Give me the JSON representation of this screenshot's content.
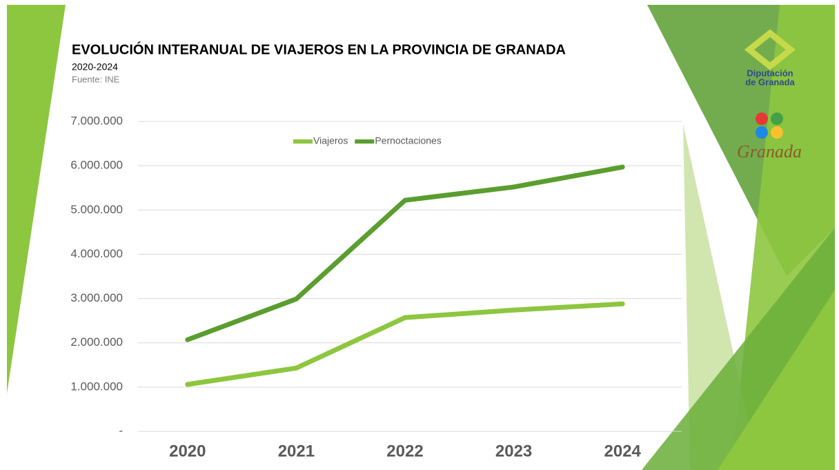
{
  "chart_data": {
    "type": "line",
    "title": "EVOLUCIÓN INTERANUAL  DE VIAJEROS EN LA PROVINCIA DE GRANADA",
    "subtitle": "2020-2024",
    "source": "Fuente: INE",
    "categories": [
      "2020",
      "2021",
      "2022",
      "2023",
      "2024"
    ],
    "series": [
      {
        "name": "Viajeros",
        "color": "#8dc63f",
        "values": [
          1060000,
          1430000,
          2570000,
          2740000,
          2880000
        ]
      },
      {
        "name": "Pernoctaciones",
        "color": "#5a9e2f",
        "values": [
          2070000,
          2990000,
          5220000,
          5520000,
          5970000
        ]
      }
    ],
    "ylim": [
      0,
      7000000
    ],
    "yticks": [
      {
        "value": 0,
        "label": "-"
      },
      {
        "value": 1000000,
        "label": "1.000.000"
      },
      {
        "value": 2000000,
        "label": "2.000.000"
      },
      {
        "value": 3000000,
        "label": "3.000.000"
      },
      {
        "value": 4000000,
        "label": "4.000.000"
      },
      {
        "value": 5000000,
        "label": "5.000.000"
      },
      {
        "value": 6000000,
        "label": "6.000.000"
      },
      {
        "value": 7000000,
        "label": "7.000.000"
      }
    ],
    "grid": true,
    "legend_position": "top",
    "logos": {
      "diputacion_line1": "Diputación",
      "diputacion_line2": "de Granada",
      "granada": "Granada"
    }
  }
}
